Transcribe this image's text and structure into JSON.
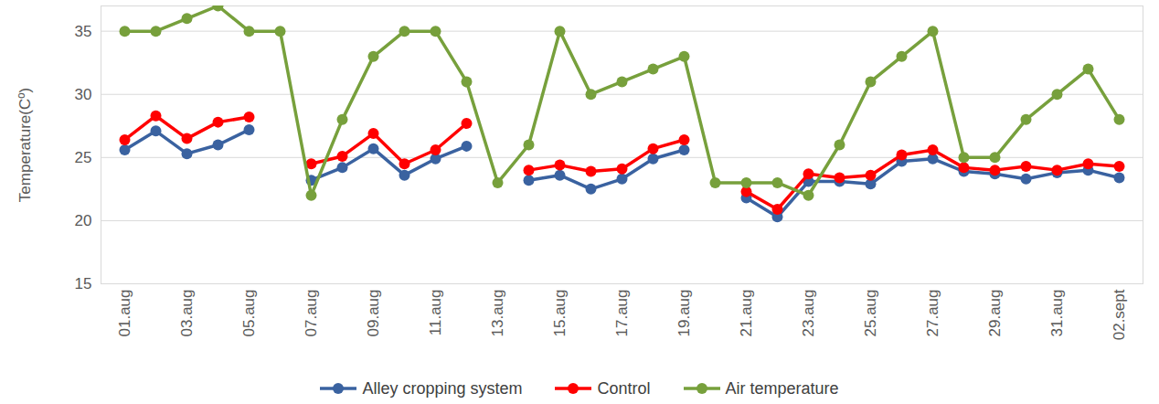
{
  "chart_data": {
    "type": "line",
    "y_label": "Temperature(Cº)",
    "categories": [
      "01.aug",
      null,
      "03.aug",
      null,
      "05.aug",
      null,
      "07.aug",
      null,
      "09.aug",
      null,
      "11.aug",
      null,
      "13.aug",
      null,
      "15.aug",
      null,
      "17.aug",
      null,
      "19.aug",
      null,
      "21.aug",
      null,
      "23.aug",
      null,
      "25.aug",
      null,
      "27.aug",
      null,
      "29.aug",
      null,
      "31.aug",
      null,
      "02.sept"
    ],
    "series": [
      {
        "name": "Alley cropping system",
        "color": "#3A62A0",
        "marker": "circle",
        "values": [
          25.6,
          27.1,
          25.3,
          26.0,
          27.2,
          null,
          23.2,
          24.2,
          25.7,
          23.6,
          24.9,
          25.9,
          null,
          23.2,
          23.6,
          22.5,
          23.3,
          24.9,
          25.6,
          null,
          21.8,
          20.3,
          23.1,
          23.1,
          22.9,
          24.7,
          24.9,
          23.9,
          23.7,
          23.3,
          23.8,
          24.0,
          23.4
        ]
      },
      {
        "name": "Control",
        "color": "#FF0000",
        "marker": "circle",
        "values": [
          26.4,
          28.3,
          26.5,
          27.8,
          28.2,
          null,
          24.5,
          25.1,
          26.9,
          24.5,
          25.6,
          27.7,
          null,
          24.0,
          24.4,
          23.9,
          24.1,
          25.7,
          26.4,
          null,
          22.3,
          20.9,
          23.7,
          23.4,
          23.6,
          25.2,
          25.6,
          24.2,
          24.0,
          24.3,
          24.0,
          24.5,
          24.3
        ]
      },
      {
        "name": "Air temperature",
        "color": "#77A03C",
        "marker": "circle",
        "values": [
          35,
          35,
          36,
          37,
          35,
          35,
          22,
          28,
          33,
          35,
          35,
          31,
          23,
          26,
          35,
          30,
          31,
          32,
          33,
          23,
          23,
          23,
          22,
          26,
          31,
          33,
          35,
          25,
          25,
          28,
          30,
          32,
          28
        ]
      }
    ],
    "ylim": [
      15,
      37
    ],
    "yticks": [
      15,
      20,
      25,
      30,
      35
    ],
    "grid": true,
    "legend": "bottom"
  }
}
